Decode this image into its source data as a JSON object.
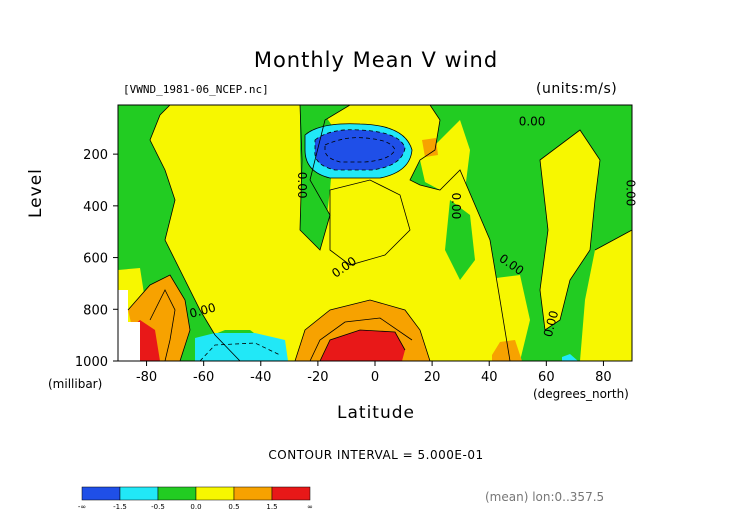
{
  "header": {
    "title": "Monthly Mean V wind",
    "filename": "[VWND_1981-06_NCEP.nc]",
    "units": "(units:m/s)"
  },
  "chart_data": {
    "type": "heatmap",
    "title": "Monthly Mean V wind",
    "xlabel": "Latitude",
    "xlabel_units": "(degrees_north)",
    "ylabel": "Level",
    "ylabel_units": "(millibar)",
    "xlim": [
      -90,
      90
    ],
    "ylim": [
      1000,
      10
    ],
    "x_ticks": [
      -80,
      -60,
      -40,
      -20,
      0,
      20,
      40,
      60,
      80
    ],
    "x_tick_labels": [
      "-80",
      "-60",
      "-40",
      "-20",
      "0",
      "20",
      "40",
      "60",
      "80"
    ],
    "y_ticks": [
      200,
      400,
      600,
      800,
      1000
    ],
    "y_tick_labels": [
      "200",
      "400",
      "600",
      "800",
      "1000"
    ],
    "contour_labels": [
      "0.00",
      "0.00",
      "0.00",
      "0.00",
      "0.00",
      "0.00",
      "0.00",
      "0.00"
    ],
    "contour_interval_text": "CONTOUR INTERVAL = 5.000E-01",
    "colors": {
      "lt_neg1_5": "#1f4fe8",
      "neg1_5_to_neg0_5": "#21e8f7",
      "neg0_5_to_0": "#22cc22",
      "0_to_0_5": "#f7f700",
      "0_5_to_1_5": "#f7a200",
      "gt_1_5": "#e81818",
      "missing": "#ffffff"
    },
    "colorbar": {
      "bins": [
        "-∞..-1.5",
        "-1.5..-0.5",
        "-0.5..0.0",
        "0.0..0.5",
        "0.5..1.5",
        "1.5..∞"
      ],
      "labels": [
        "-∞",
        "-1.5",
        "-0.5",
        "0.0",
        "0.5",
        "1.5",
        "∞"
      ]
    }
  },
  "footer": {
    "mean_note": "(mean) lon:0..357.5"
  }
}
